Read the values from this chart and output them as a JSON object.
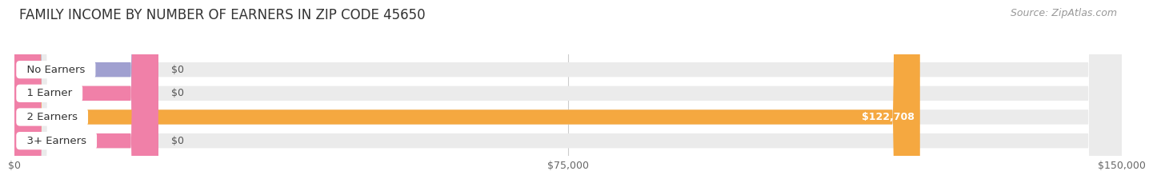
{
  "title": "FAMILY INCOME BY NUMBER OF EARNERS IN ZIP CODE 45650",
  "source": "Source: ZipAtlas.com",
  "categories": [
    "No Earners",
    "1 Earner",
    "2 Earners",
    "3+ Earners"
  ],
  "values": [
    0,
    0,
    122708,
    0
  ],
  "bar_colors": [
    "#a0a0d0",
    "#f080a8",
    "#f5a840",
    "#f080a8"
  ],
  "xlim_max": 150000,
  "xticks": [
    0,
    75000,
    150000
  ],
  "xticklabels": [
    "$0",
    "$75,000",
    "$150,000"
  ],
  "bg_bar_color": "#ebebeb",
  "bar_height": 0.62,
  "bar_spacing": 1.0,
  "title_fontsize": 12,
  "source_fontsize": 9,
  "label_fontsize": 9.5,
  "value_fontsize": 9
}
